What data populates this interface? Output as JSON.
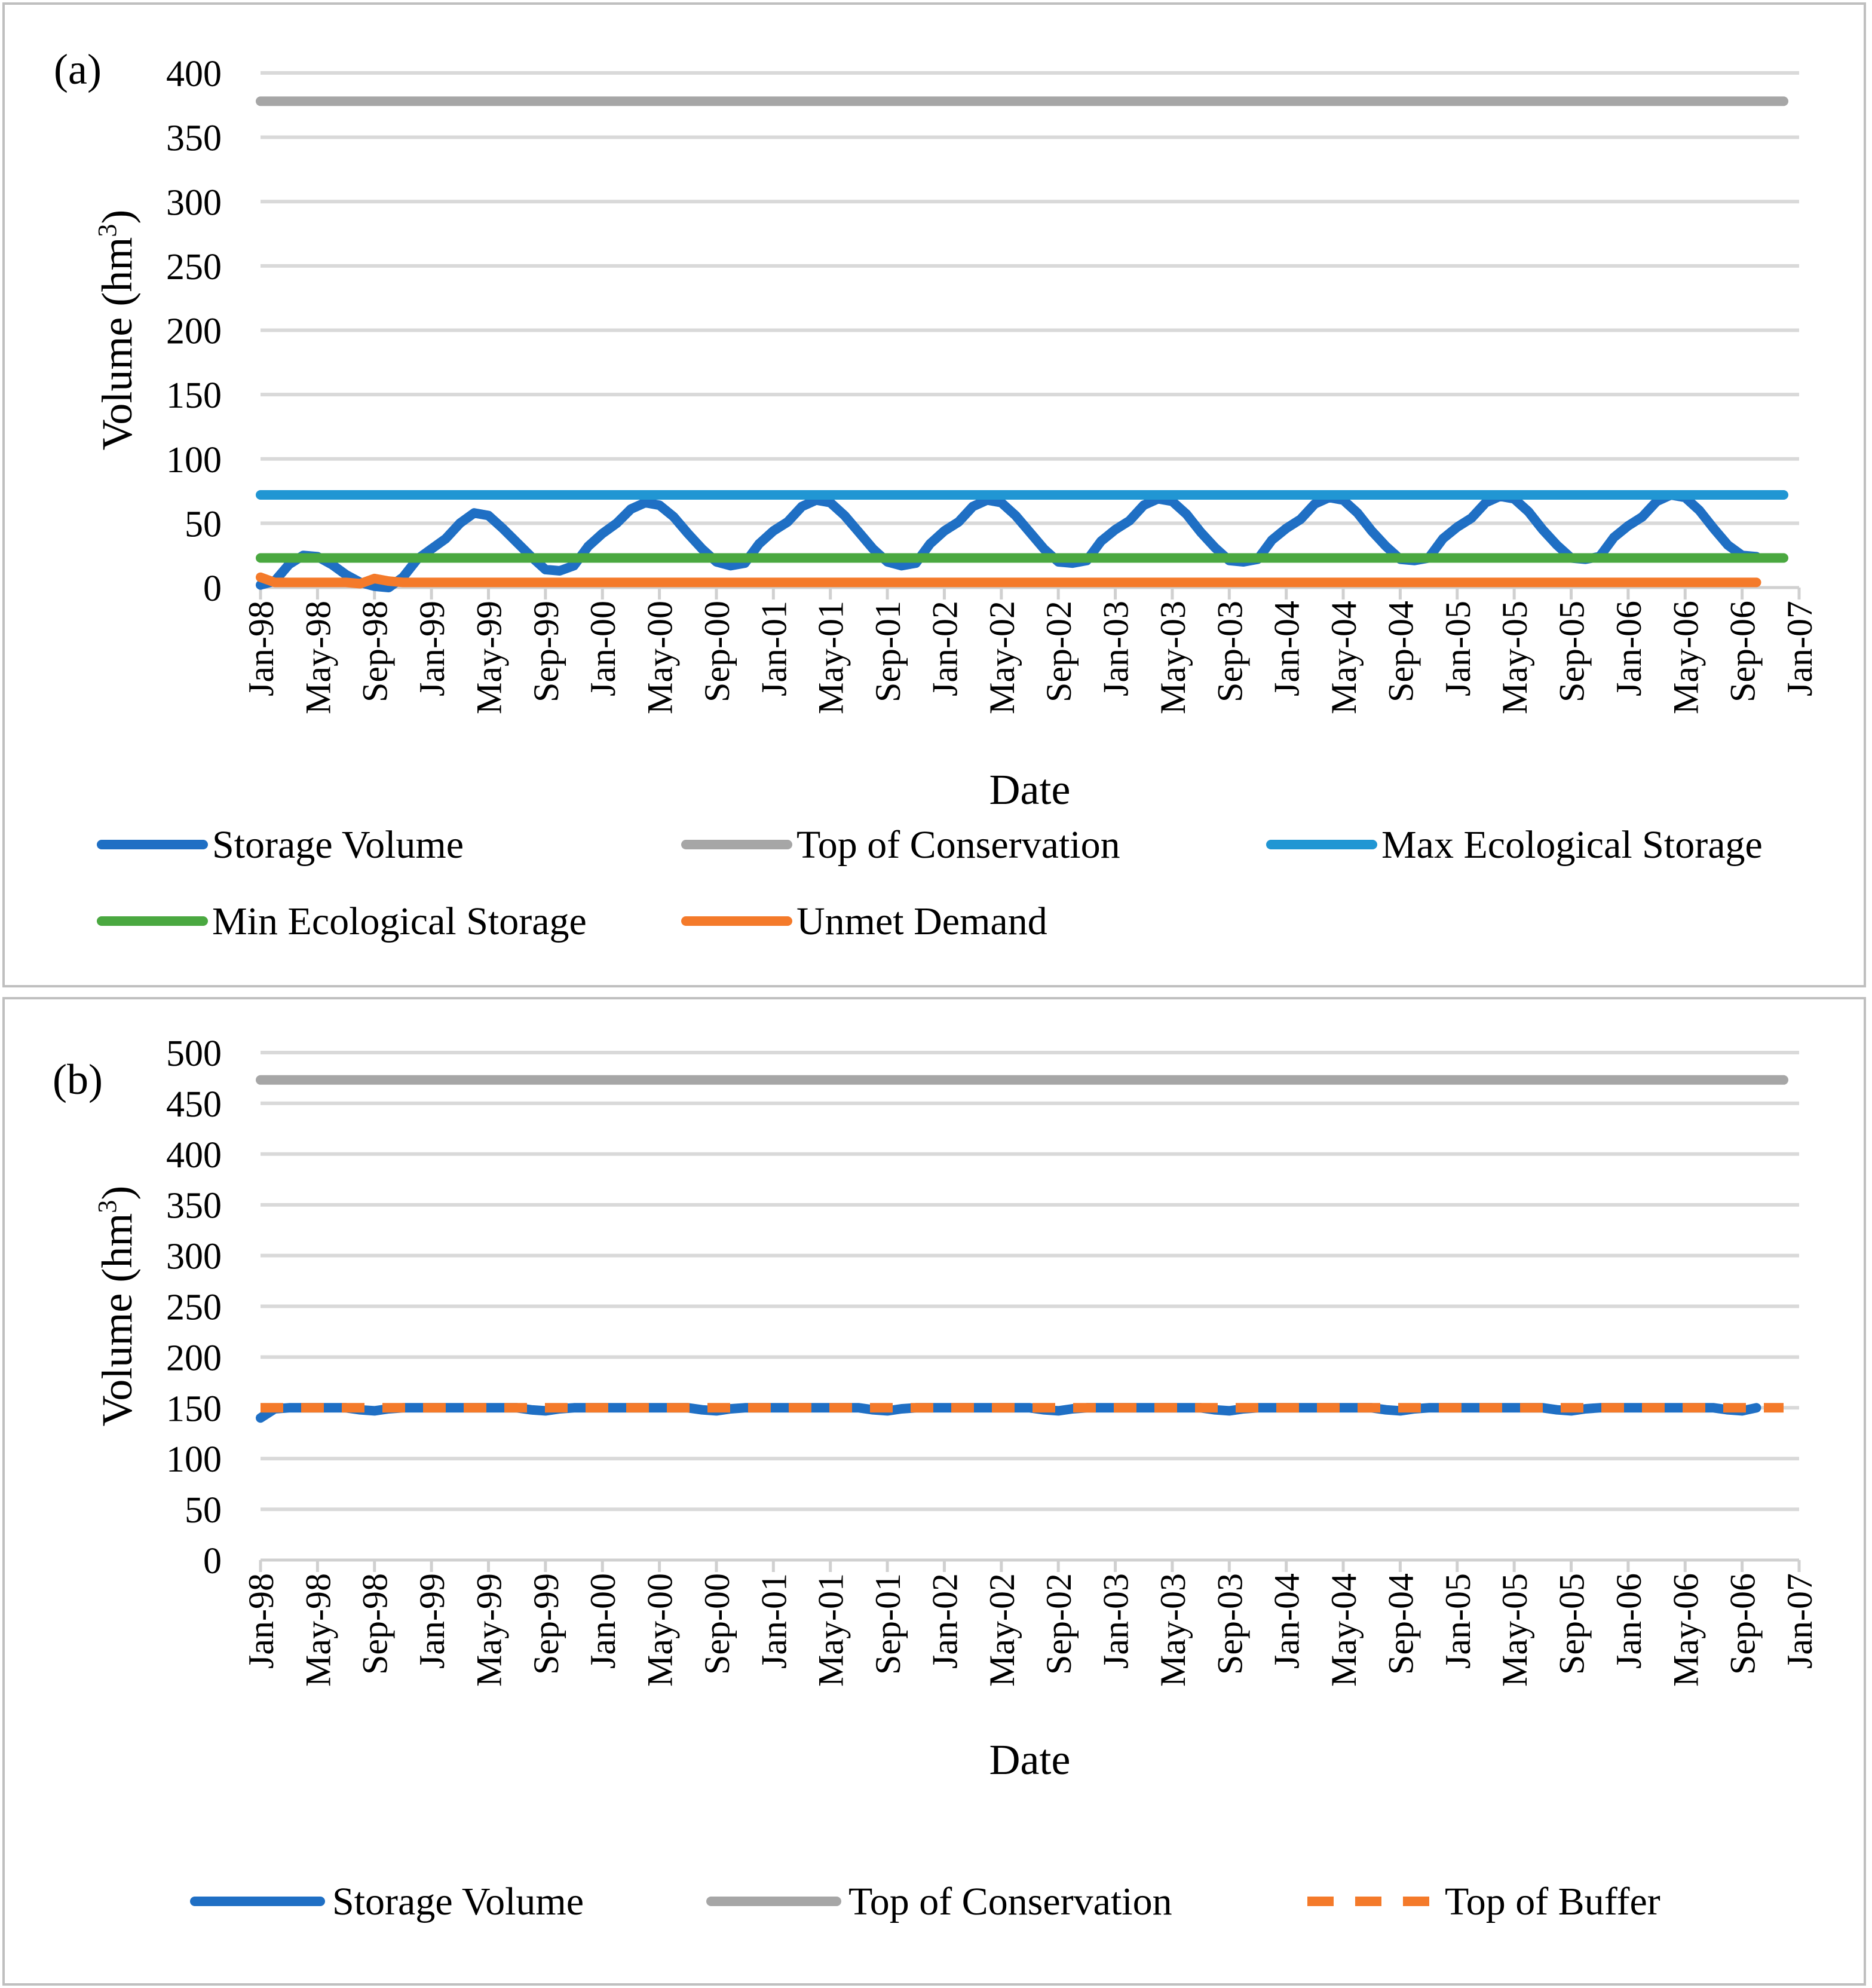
{
  "colors": {
    "storage": "#1f6fc4",
    "top_conservation": "#a6a6a6",
    "max_eco": "#2196d3",
    "min_eco": "#4aa840",
    "unmet": "#f47a2a",
    "top_buffer": "#f47a2a",
    "grid": "#d9d9d9",
    "frame": "#bfbfbf"
  },
  "chart_data": [
    {
      "panel_label": "(a)",
      "type": "line",
      "xlabel": "Date",
      "ylabel": "Volume (hm",
      "ylabel_sup": "3",
      "ylabel_close": ")",
      "x_range": [
        "1998-01",
        "2007-01"
      ],
      "ylim": [
        0,
        400
      ],
      "yticks": [
        0,
        50,
        100,
        150,
        200,
        250,
        300,
        350,
        400
      ],
      "xticks": [
        {
          "label": "Jan-98",
          "date": "1998-01"
        },
        {
          "label": "May-98",
          "date": "1998-05"
        },
        {
          "label": "Sep-98",
          "date": "1998-09"
        },
        {
          "label": "Jan-99",
          "date": "1999-01"
        },
        {
          "label": "May-99",
          "date": "1999-05"
        },
        {
          "label": "Sep-99",
          "date": "1999-09"
        },
        {
          "label": "Jan-00",
          "date": "2000-01"
        },
        {
          "label": "May-00",
          "date": "2000-05"
        },
        {
          "label": "Sep-00",
          "date": "2000-09"
        },
        {
          "label": "Jan-01",
          "date": "2001-01"
        },
        {
          "label": "May-01",
          "date": "2001-05"
        },
        {
          "label": "Sep-01",
          "date": "2001-09"
        },
        {
          "label": "Jan-02",
          "date": "2002-01"
        },
        {
          "label": "May-02",
          "date": "2002-05"
        },
        {
          "label": "Sep-02",
          "date": "2002-09"
        },
        {
          "label": "Jan-03",
          "date": "2003-01"
        },
        {
          "label": "May-03",
          "date": "2003-05"
        },
        {
          "label": "Sep-03",
          "date": "2003-09"
        },
        {
          "label": "Jan-04",
          "date": "2004-01"
        },
        {
          "label": "May-04",
          "date": "2004-05"
        },
        {
          "label": "Sep-04",
          "date": "2004-09"
        },
        {
          "label": "Jan-05",
          "date": "2005-01"
        },
        {
          "label": "May-05",
          "date": "2005-05"
        },
        {
          "label": "Sep-05",
          "date": "2005-09"
        },
        {
          "label": "Jan-06",
          "date": "2006-01"
        },
        {
          "label": "May-06",
          "date": "2006-05"
        },
        {
          "label": "Sep-06",
          "date": "2006-09"
        },
        {
          "label": "Jan-07",
          "date": "2007-01"
        }
      ],
      "grid": true,
      "legend_position": "bottom",
      "series": [
        {
          "name": "Storage Volume",
          "color_key": "storage",
          "dash": false,
          "points": [
            [
              "1998-01",
              2
            ],
            [
              "1998-02",
              5
            ],
            [
              "1998-03",
              18
            ],
            [
              "1998-04",
              25
            ],
            [
              "1998-05",
              24
            ],
            [
              "1998-06",
              18
            ],
            [
              "1998-07",
              10
            ],
            [
              "1998-08",
              4
            ],
            [
              "1998-09",
              1
            ],
            [
              "1998-10",
              0
            ],
            [
              "1998-11",
              8
            ],
            [
              "1998-12",
              22
            ],
            [
              "1999-01",
              30
            ],
            [
              "1999-02",
              38
            ],
            [
              "1999-03",
              50
            ],
            [
              "1999-04",
              58
            ],
            [
              "1999-05",
              56
            ],
            [
              "1999-06",
              46
            ],
            [
              "1999-07",
              35
            ],
            [
              "1999-08",
              24
            ],
            [
              "1999-09",
              14
            ],
            [
              "1999-10",
              13
            ],
            [
              "1999-11",
              17
            ],
            [
              "1999-12",
              32
            ],
            [
              "2000-01",
              42
            ],
            [
              "2000-02",
              50
            ],
            [
              "2000-03",
              61
            ],
            [
              "2000-04",
              66
            ],
            [
              "2000-05",
              64
            ],
            [
              "2000-06",
              55
            ],
            [
              "2000-07",
              42
            ],
            [
              "2000-08",
              30
            ],
            [
              "2000-09",
              20
            ],
            [
              "2000-10",
              17
            ],
            [
              "2000-11",
              19
            ],
            [
              "2000-12",
              34
            ],
            [
              "2001-01",
              44
            ],
            [
              "2001-02",
              51
            ],
            [
              "2001-03",
              63
            ],
            [
              "2001-04",
              68
            ],
            [
              "2001-05",
              66
            ],
            [
              "2001-06",
              56
            ],
            [
              "2001-07",
              43
            ],
            [
              "2001-08",
              30
            ],
            [
              "2001-09",
              20
            ],
            [
              "2001-10",
              17
            ],
            [
              "2001-11",
              19
            ],
            [
              "2001-12",
              34
            ],
            [
              "2002-01",
              44
            ],
            [
              "2002-02",
              51
            ],
            [
              "2002-03",
              63
            ],
            [
              "2002-04",
              68
            ],
            [
              "2002-05",
              66
            ],
            [
              "2002-06",
              56
            ],
            [
              "2002-07",
              43
            ],
            [
              "2002-08",
              30
            ],
            [
              "2002-09",
              20
            ],
            [
              "2002-10",
              19
            ],
            [
              "2002-11",
              21
            ],
            [
              "2002-12",
              36
            ],
            [
              "2003-01",
              45
            ],
            [
              "2003-02",
              52
            ],
            [
              "2003-03",
              64
            ],
            [
              "2003-04",
              69
            ],
            [
              "2003-05",
              67
            ],
            [
              "2003-06",
              57
            ],
            [
              "2003-07",
              43
            ],
            [
              "2003-08",
              31
            ],
            [
              "2003-09",
              21
            ],
            [
              "2003-10",
              20
            ],
            [
              "2003-11",
              22
            ],
            [
              "2003-12",
              37
            ],
            [
              "2004-01",
              46
            ],
            [
              "2004-02",
              53
            ],
            [
              "2004-03",
              65
            ],
            [
              "2004-04",
              70
            ],
            [
              "2004-05",
              68
            ],
            [
              "2004-06",
              58
            ],
            [
              "2004-07",
              44
            ],
            [
              "2004-08",
              32
            ],
            [
              "2004-09",
              22
            ],
            [
              "2004-10",
              21
            ],
            [
              "2004-11",
              23
            ],
            [
              "2004-12",
              38
            ],
            [
              "2005-01",
              47
            ],
            [
              "2005-02",
              54
            ],
            [
              "2005-03",
              66
            ],
            [
              "2005-04",
              71
            ],
            [
              "2005-05",
              69
            ],
            [
              "2005-06",
              59
            ],
            [
              "2005-07",
              45
            ],
            [
              "2005-08",
              33
            ],
            [
              "2005-09",
              23
            ],
            [
              "2005-10",
              22
            ],
            [
              "2005-11",
              24
            ],
            [
              "2005-12",
              39
            ],
            [
              "2006-01",
              48
            ],
            [
              "2006-02",
              55
            ],
            [
              "2006-03",
              67
            ],
            [
              "2006-04",
              72
            ],
            [
              "2006-05",
              70
            ],
            [
              "2006-06",
              60
            ],
            [
              "2006-07",
              46
            ],
            [
              "2006-08",
              33
            ],
            [
              "2006-09",
              25
            ],
            [
              "2006-10",
              24
            ]
          ]
        },
        {
          "name": "Top of Conservation",
          "color_key": "top_conservation",
          "dash": false,
          "points": [
            [
              "1998-01",
              378
            ],
            [
              "2006-10",
              378
            ]
          ]
        },
        {
          "name": "Max Ecological Storage",
          "color_key": "max_eco",
          "dash": false,
          "points": [
            [
              "1998-01",
              72
            ],
            [
              "2006-10",
              72
            ]
          ]
        },
        {
          "name": "Min Ecological Storage",
          "color_key": "min_eco",
          "dash": false,
          "points": [
            [
              "1998-01",
              23
            ],
            [
              "2006-10",
              23
            ]
          ]
        },
        {
          "name": "Unmet Demand",
          "color_key": "unmet",
          "dash": false,
          "points": [
            [
              "1998-01",
              8
            ],
            [
              "1998-02",
              4
            ],
            [
              "1998-03",
              4
            ],
            [
              "1998-07",
              4
            ],
            [
              "1998-08",
              3
            ],
            [
              "1998-09",
              7
            ],
            [
              "1998-10",
              5
            ],
            [
              "1998-11",
              4
            ],
            [
              "2006-10",
              4
            ]
          ]
        }
      ]
    },
    {
      "panel_label": "(b)",
      "type": "line",
      "xlabel": "Date",
      "ylabel": "Volume (hm",
      "ylabel_sup": "3",
      "ylabel_close": ")",
      "x_range": [
        "1998-01",
        "2007-01"
      ],
      "ylim": [
        0,
        500
      ],
      "yticks": [
        0,
        50,
        100,
        150,
        200,
        250,
        300,
        350,
        400,
        450,
        500
      ],
      "xticks": [
        {
          "label": "Jan-98",
          "date": "1998-01"
        },
        {
          "label": "May-98",
          "date": "1998-05"
        },
        {
          "label": "Sep-98",
          "date": "1998-09"
        },
        {
          "label": "Jan-99",
          "date": "1999-01"
        },
        {
          "label": "May-99",
          "date": "1999-05"
        },
        {
          "label": "Sep-99",
          "date": "1999-09"
        },
        {
          "label": "Jan-00",
          "date": "2000-01"
        },
        {
          "label": "May-00",
          "date": "2000-05"
        },
        {
          "label": "Sep-00",
          "date": "2000-09"
        },
        {
          "label": "Jan-01",
          "date": "2001-01"
        },
        {
          "label": "May-01",
          "date": "2001-05"
        },
        {
          "label": "Sep-01",
          "date": "2001-09"
        },
        {
          "label": "Jan-02",
          "date": "2002-01"
        },
        {
          "label": "May-02",
          "date": "2002-05"
        },
        {
          "label": "Sep-02",
          "date": "2002-09"
        },
        {
          "label": "Jan-03",
          "date": "2003-01"
        },
        {
          "label": "May-03",
          "date": "2003-05"
        },
        {
          "label": "Sep-03",
          "date": "2003-09"
        },
        {
          "label": "Jan-04",
          "date": "2004-01"
        },
        {
          "label": "May-04",
          "date": "2004-05"
        },
        {
          "label": "Sep-04",
          "date": "2004-09"
        },
        {
          "label": "Jan-05",
          "date": "2005-01"
        },
        {
          "label": "May-05",
          "date": "2005-05"
        },
        {
          "label": "Sep-05",
          "date": "2005-09"
        },
        {
          "label": "Jan-06",
          "date": "2006-01"
        },
        {
          "label": "May-06",
          "date": "2006-05"
        },
        {
          "label": "Sep-06",
          "date": "2006-09"
        },
        {
          "label": "Jan-07",
          "date": "2007-01"
        }
      ],
      "grid": true,
      "legend_position": "bottom",
      "series": [
        {
          "name": "Storage Volume",
          "color_key": "storage",
          "dash": false,
          "points": [
            [
              "1998-01",
              140
            ],
            [
              "1998-02",
              149
            ],
            [
              "1998-03",
              150
            ],
            [
              "1998-07",
              150
            ],
            [
              "1998-08",
              148
            ],
            [
              "1998-09",
              147
            ],
            [
              "1998-10",
              149
            ],
            [
              "1998-11",
              150
            ],
            [
              "1999-07",
              150
            ],
            [
              "1999-08",
              148
            ],
            [
              "1999-09",
              147
            ],
            [
              "1999-10",
              149
            ],
            [
              "1999-11",
              150
            ],
            [
              "2000-07",
              150
            ],
            [
              "2000-08",
              148
            ],
            [
              "2000-09",
              147
            ],
            [
              "2000-10",
              149
            ],
            [
              "2000-11",
              150
            ],
            [
              "2001-07",
              150
            ],
            [
              "2001-08",
              148
            ],
            [
              "2001-09",
              147
            ],
            [
              "2001-10",
              149
            ],
            [
              "2001-11",
              150
            ],
            [
              "2002-07",
              150
            ],
            [
              "2002-08",
              148
            ],
            [
              "2002-09",
              147
            ],
            [
              "2002-10",
              149
            ],
            [
              "2002-11",
              150
            ],
            [
              "2003-07",
              150
            ],
            [
              "2003-08",
              148
            ],
            [
              "2003-09",
              147
            ],
            [
              "2003-10",
              149
            ],
            [
              "2003-11",
              150
            ],
            [
              "2004-07",
              150
            ],
            [
              "2004-08",
              148
            ],
            [
              "2004-09",
              147
            ],
            [
              "2004-10",
              149
            ],
            [
              "2004-11",
              150
            ],
            [
              "2005-07",
              150
            ],
            [
              "2005-08",
              148
            ],
            [
              "2005-09",
              147
            ],
            [
              "2005-10",
              149
            ],
            [
              "2005-11",
              150
            ],
            [
              "2006-07",
              150
            ],
            [
              "2006-08",
              148
            ],
            [
              "2006-09",
              147
            ],
            [
              "2006-10",
              150
            ]
          ]
        },
        {
          "name": "Top of Conservation",
          "color_key": "top_conservation",
          "dash": false,
          "points": [
            [
              "1998-01",
              473
            ],
            [
              "2006-10",
              473
            ]
          ]
        },
        {
          "name": "Top of Buffer",
          "color_key": "top_buffer",
          "dash": true,
          "points": [
            [
              "1998-01",
              150
            ],
            [
              "2006-10",
              150
            ]
          ]
        }
      ]
    }
  ]
}
